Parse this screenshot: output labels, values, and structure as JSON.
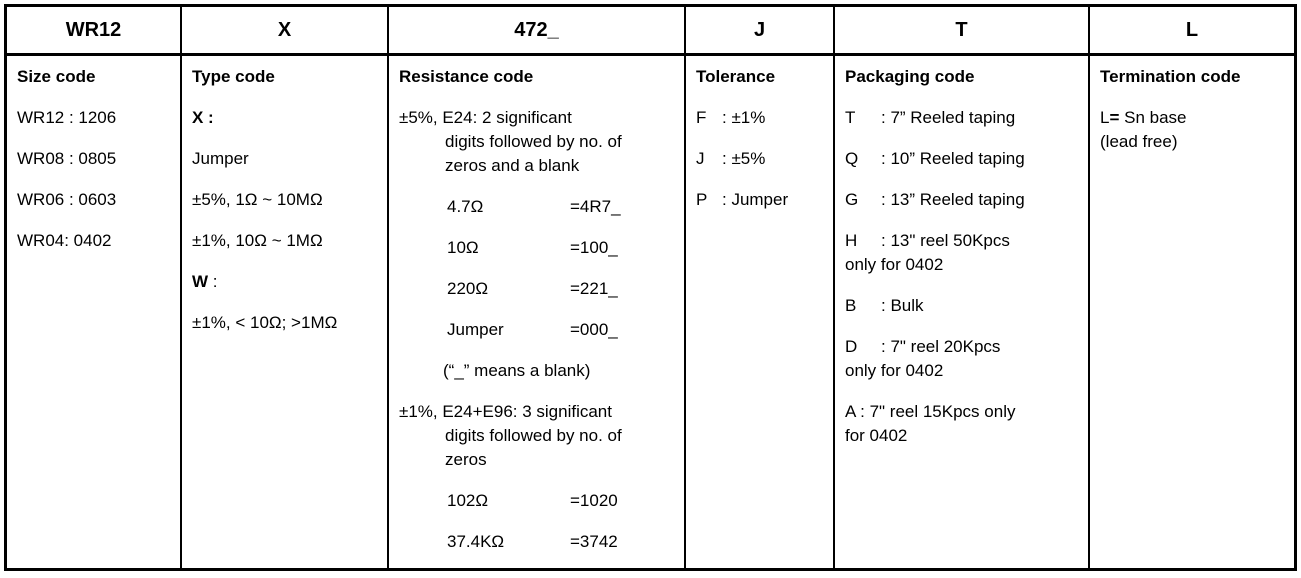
{
  "colors": {
    "border": "#000000",
    "background": "#ffffff",
    "text": "#000000"
  },
  "header_codes": {
    "size": "WR12",
    "type": "X",
    "resistance": "472_",
    "tolerance": "J",
    "packaging": "T",
    "termination": "L"
  },
  "size": {
    "title": "Size code",
    "items": [
      "WR12 : 1206",
      "WR08 : 0805",
      "WR06 : 0603",
      "WR04: 0402"
    ]
  },
  "type": {
    "title": "Type code",
    "x_label": "X :",
    "jumper": "Jumper",
    "range_5pct": "±5%, 1Ω ~ 10MΩ",
    "range_1pct": "±1%, 10Ω ~ 1MΩ",
    "w_label": "W",
    "w_colon": " :",
    "range_w": "±1%, < 10Ω; >1MΩ"
  },
  "resistance": {
    "title": "Resistance code",
    "rule_5pct": "±5%, E24: 2 significant\ndigits followed by no. of\nzeros and a blank",
    "examples_5pct": [
      {
        "value": "4.7Ω",
        "code": "=4R7_"
      },
      {
        "value": "10Ω",
        "code": "=100_"
      },
      {
        "value": "220Ω",
        "code": "=221_"
      },
      {
        "value": "Jumper",
        "code": "=000_"
      }
    ],
    "blank_note": "(“_” means a blank)",
    "rule_1pct": "±1%, E24+E96: 3 significant\ndigits followed by no. of\nzeros",
    "examples_1pct": [
      {
        "value": "102Ω",
        "code": "=1020"
      },
      {
        "value": "37.4KΩ",
        "code": "=3742"
      }
    ]
  },
  "tolerance": {
    "title": "Tolerance",
    "items": [
      {
        "letter": "F",
        "desc": ": ±1%"
      },
      {
        "letter": "J",
        "desc": ": ±5%"
      },
      {
        "letter": "P",
        "desc": ": Jumper"
      }
    ]
  },
  "packaging": {
    "title": "Packaging code",
    "items": [
      {
        "letter": "T",
        "rest": ": 7” Reeled taping"
      },
      {
        "letter": "Q",
        "rest": ": 10” Reeled taping"
      },
      {
        "letter": "G",
        "rest": ": 13” Reeled taping"
      },
      {
        "letter": "H",
        "rest": ": 13\" reel 50Kpcs",
        "line2": "only for 0402"
      },
      {
        "letter": "B",
        "rest": ": Bulk"
      },
      {
        "letter": "D",
        "rest": ": 7\" reel 20Kpcs",
        "line2": "only for 0402"
      },
      {
        "line1": "A : 7\" reel 15Kpcs only",
        "line2": "for 0402"
      }
    ]
  },
  "termination": {
    "title": "Termination code",
    "l": "L",
    "eq": "=",
    "rest": " Sn base",
    "line2": "(lead free)"
  }
}
